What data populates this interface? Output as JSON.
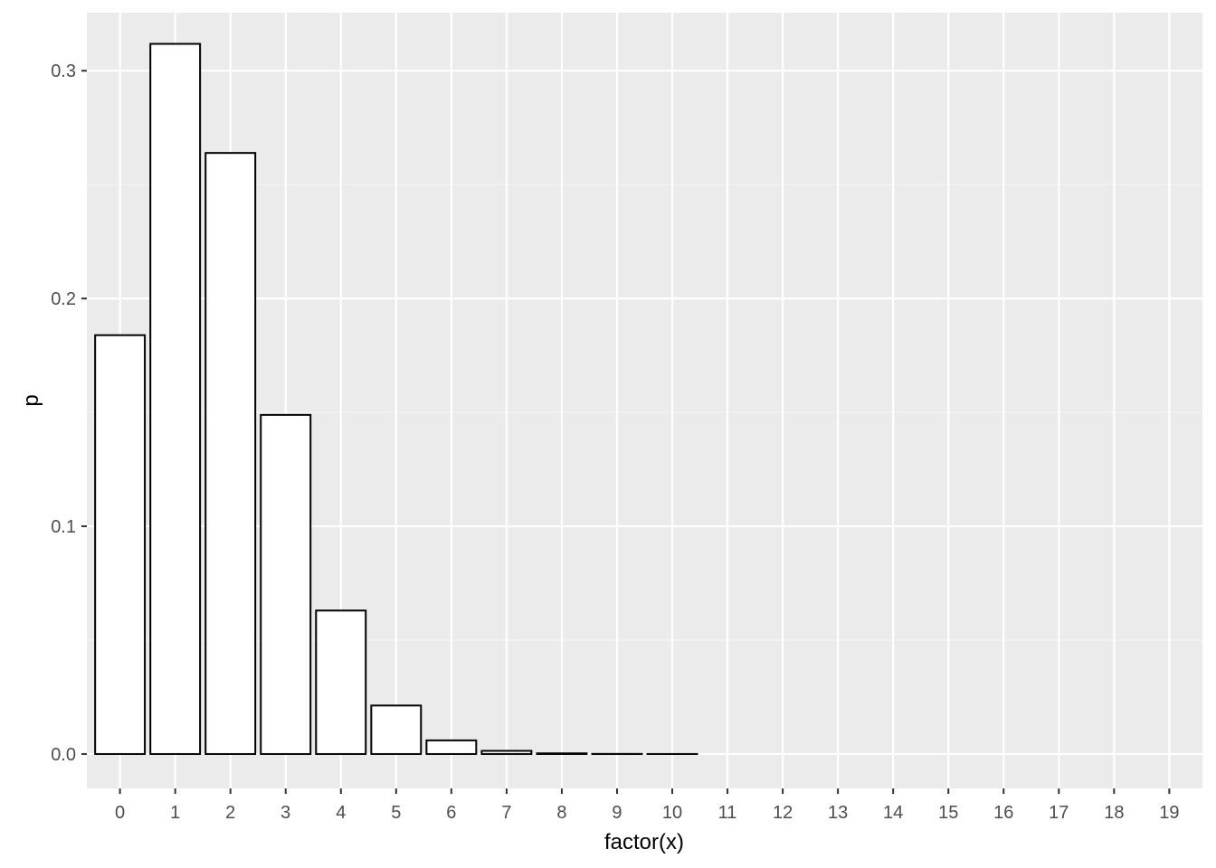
{
  "chart_data": {
    "type": "bar",
    "xlabel": "factor(x)",
    "ylabel": "p",
    "categories": [
      "0",
      "1",
      "2",
      "3",
      "4",
      "5",
      "6",
      "7",
      "8",
      "9",
      "10",
      "11",
      "12",
      "13",
      "14",
      "15",
      "16",
      "17",
      "18",
      "19"
    ],
    "values": [
      0.1839,
      0.3118,
      0.2639,
      0.1489,
      0.063,
      0.0213,
      0.006,
      0.0014,
      0.0003,
      5e-05,
      1e-05,
      0,
      0,
      0,
      0,
      0,
      0,
      0,
      0,
      0
    ],
    "ylim": [
      -0.0151,
      0.3255
    ],
    "yticks": [
      0.0,
      0.1,
      0.2,
      0.3
    ],
    "ytick_labels": [
      "0.0",
      "0.1",
      "0.2",
      "0.3"
    ],
    "grid": true,
    "legend": "none",
    "colors": {
      "panel_background": "#ebebeb",
      "grid_major": "#ffffff",
      "grid_minor": "#f5f5f5",
      "bar_fill": "#ffffff",
      "bar_outline": "#000000",
      "tick_text": "#4d4d4d",
      "tick_mark": "#333333"
    }
  }
}
